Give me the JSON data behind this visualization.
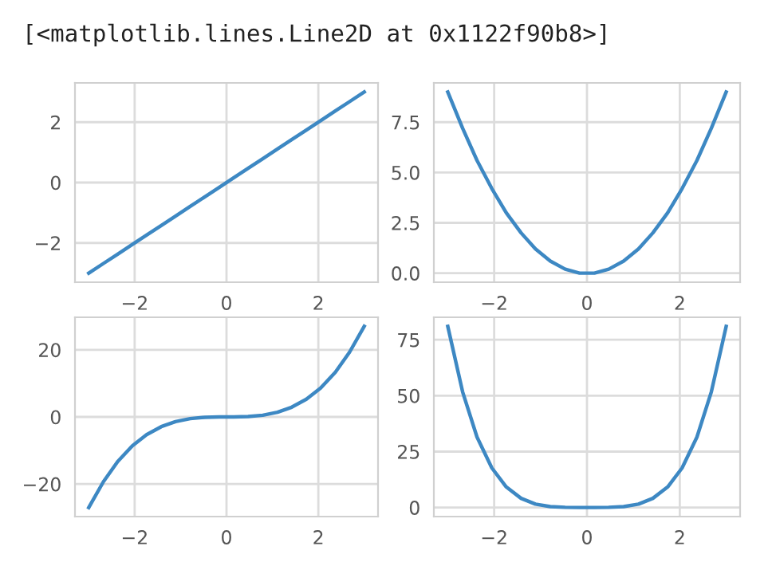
{
  "chart_data": [
    {
      "type": "line",
      "annotations": [
        "[<matplotlib.lines.Line2D at 0x1122f90b8>]"
      ],
      "grid": true,
      "x": [
        -3,
        -2.68,
        -2.37,
        -2.05,
        -1.74,
        -1.42,
        -1.11,
        -0.79,
        -0.47,
        -0.16,
        0.16,
        0.47,
        0.79,
        1.11,
        1.42,
        1.74,
        2.05,
        2.37,
        2.68,
        3
      ],
      "series": [
        {
          "color": "#3d88c3",
          "values": [
            -3,
            -2.68,
            -2.37,
            -2.05,
            -1.74,
            -1.42,
            -1.11,
            -0.79,
            -0.47,
            -0.16,
            0.16,
            0.47,
            0.79,
            1.11,
            1.42,
            1.74,
            2.05,
            2.37,
            2.68,
            3
          ]
        }
      ],
      "xlim": [
        -3.3,
        3.3
      ],
      "ylim": [
        -3.3,
        3.3
      ],
      "xticks": [
        -2,
        0,
        2
      ],
      "yticks": [
        -2,
        0,
        2
      ]
    },
    {
      "type": "line",
      "grid": true,
      "x": [
        -3,
        -2.68,
        -2.37,
        -2.05,
        -1.74,
        -1.42,
        -1.11,
        -0.79,
        -0.47,
        -0.16,
        0.16,
        0.47,
        0.79,
        1.11,
        1.42,
        1.74,
        2.05,
        2.37,
        2.68,
        3
      ],
      "series": [
        {
          "color": "#3d88c3",
          "values": [
            9,
            7.2,
            5.6,
            4.2,
            3.0,
            2.0,
            1.2,
            0.6,
            0.2,
            0.0,
            0.0,
            0.2,
            0.6,
            1.2,
            2.0,
            3.0,
            4.2,
            5.6,
            7.2,
            9
          ]
        }
      ],
      "xlim": [
        -3.3,
        3.3
      ],
      "ylim": [
        -0.45,
        9.45
      ],
      "xticks": [
        -2,
        0,
        2
      ],
      "yticks": [
        {
          "value": 0,
          "label": "0.0"
        },
        {
          "value": 2.5,
          "label": "2.5"
        },
        {
          "value": 5,
          "label": "5.0"
        },
        {
          "value": 7.5,
          "label": "7.5"
        }
      ]
    },
    {
      "type": "line",
      "grid": true,
      "x": [
        -3,
        -2.68,
        -2.37,
        -2.05,
        -1.74,
        -1.42,
        -1.11,
        -0.79,
        -0.47,
        -0.16,
        0.16,
        0.47,
        0.79,
        1.11,
        1.42,
        1.74,
        2.05,
        2.37,
        2.68,
        3
      ],
      "series": [
        {
          "color": "#3d88c3",
          "values": [
            -27,
            -19.3,
            -13.3,
            -8.6,
            -5.3,
            -2.9,
            -1.4,
            -0.5,
            -0.1,
            0,
            0,
            0.1,
            0.5,
            1.4,
            2.9,
            5.3,
            8.6,
            13.3,
            19.3,
            27
          ]
        }
      ],
      "xlim": [
        -3.3,
        3.3
      ],
      "ylim": [
        -29.7,
        29.7
      ],
      "xticks": [
        -2,
        0,
        2
      ],
      "yticks": [
        -20,
        0,
        20
      ]
    },
    {
      "type": "line",
      "grid": true,
      "x": [
        -3,
        -2.68,
        -2.37,
        -2.05,
        -1.74,
        -1.42,
        -1.11,
        -0.79,
        -0.47,
        -0.16,
        0.16,
        0.47,
        0.79,
        1.11,
        1.42,
        1.74,
        2.05,
        2.37,
        2.68,
        3
      ],
      "series": [
        {
          "color": "#3d88c3",
          "values": [
            81,
            51.7,
            31.5,
            17.7,
            9.2,
            4.1,
            1.5,
            0.4,
            0.1,
            0,
            0,
            0.1,
            0.4,
            1.5,
            4.1,
            9.2,
            17.7,
            31.5,
            51.7,
            81
          ]
        }
      ],
      "xlim": [
        -3.3,
        3.3
      ],
      "ylim": [
        -4.05,
        85.05
      ],
      "xticks": [
        -2,
        0,
        2
      ],
      "yticks": [
        0,
        25,
        50,
        75
      ]
    }
  ]
}
